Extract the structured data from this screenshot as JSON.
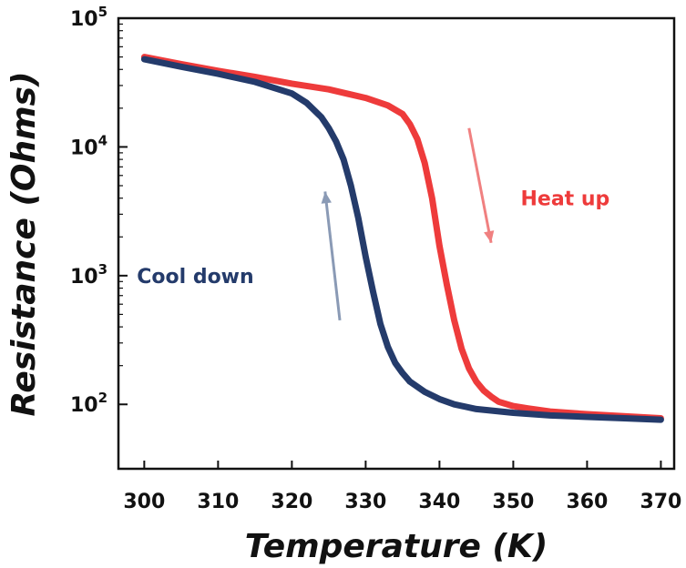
{
  "chart_data": {
    "type": "line",
    "xlabel": "Temperature (K)",
    "ylabel": "Resistance (Ohms)",
    "xlim": [
      296.5,
      371.8
    ],
    "ylim": [
      31.6,
      100000
    ],
    "yscale": "log",
    "grid": false,
    "x_ticks": [
      300,
      310,
      320,
      330,
      340,
      350,
      360,
      370
    ],
    "x_tick_labels": [
      "300",
      "310",
      "320",
      "330",
      "340",
      "350",
      "360",
      "370"
    ],
    "y_ticks": [
      100,
      1000,
      10000,
      100000
    ],
    "y_tick_labels": [
      {
        "base": "10",
        "exp": "2"
      },
      {
        "base": "10",
        "exp": "3"
      },
      {
        "base": "10",
        "exp": "4"
      },
      {
        "base": "10",
        "exp": "5"
      }
    ],
    "series": [
      {
        "name": "Heat up",
        "color": "#ee3b3b",
        "x": [
          300,
          305,
          310,
          315,
          320,
          325,
          330,
          333,
          335,
          336,
          337,
          338,
          339,
          340,
          341,
          342,
          343,
          344,
          345,
          346,
          347,
          348,
          350,
          352,
          355,
          360,
          365,
          370
        ],
        "y": [
          50000,
          44000,
          39000,
          35000,
          31000,
          28000,
          24000,
          21000,
          18000,
          15000,
          11500,
          7500,
          4000,
          1700,
          850,
          450,
          270,
          190,
          150,
          128,
          115,
          105,
          97,
          93,
          88,
          84,
          81,
          78
        ]
      },
      {
        "name": "Cool down",
        "color": "#243b6b",
        "x": [
          300,
          305,
          310,
          315,
          320,
          322,
          324,
          325,
          326,
          327,
          328,
          329,
          330,
          331,
          332,
          333,
          334,
          335,
          336,
          338,
          340,
          342,
          345,
          350,
          355,
          360,
          365,
          370
        ],
        "y": [
          48000,
          42000,
          37000,
          32000,
          26000,
          22000,
          17000,
          14000,
          11000,
          8000,
          5000,
          2800,
          1400,
          750,
          420,
          280,
          210,
          175,
          150,
          125,
          110,
          100,
          92,
          86,
          82,
          80,
          78,
          76
        ]
      }
    ],
    "annotations": [
      {
        "text": "Heat up",
        "color": "#ee3b3b",
        "x": 351,
        "y": 4000,
        "arrow": {
          "from": [
            344,
            14000
          ],
          "to": [
            347,
            1800
          ],
          "color": "#f08080"
        }
      },
      {
        "text": "Cool down",
        "color": "#243b6b",
        "x": 299,
        "y": 1000,
        "arrow": {
          "from": [
            326.5,
            450
          ],
          "to": [
            324.5,
            4500
          ],
          "color": "#8a9ab5"
        }
      }
    ]
  }
}
